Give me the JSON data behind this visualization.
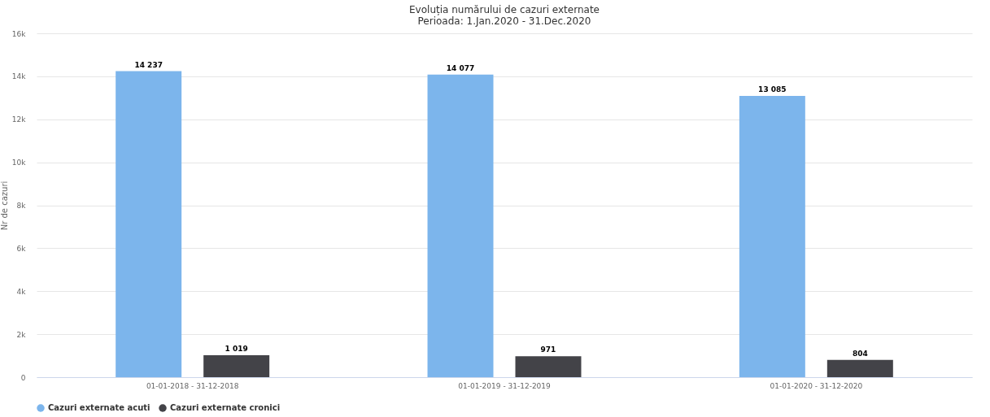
{
  "chart_data": {
    "type": "bar",
    "title": [
      "Evoluția numărului de cazuri externate",
      "Perioada: 1.Jan.2020 - 31.Dec.2020"
    ],
    "ylabel": "Nr de cazuri",
    "categories": [
      "01-01-2018 - 31-12-2018",
      "01-01-2019 - 31-12-2019",
      "01-01-2020 - 31-12-2020"
    ],
    "series": [
      {
        "name": "Cazuri externate acuti",
        "color": "#7cb5ec",
        "values": [
          14237,
          14077,
          13085
        ],
        "value_labels": [
          "14 237",
          "14 077",
          "13 085"
        ]
      },
      {
        "name": "Cazuri externate cronici",
        "color": "#434348",
        "values": [
          1019,
          971,
          804
        ],
        "value_labels": [
          "1 019",
          "971",
          "804"
        ]
      }
    ],
    "ylim": [
      0,
      16000
    ],
    "yticks": [
      0,
      {
        "value": 2000,
        "label": "2k"
      },
      {
        "value": 4000,
        "label": "4k"
      },
      {
        "value": 6000,
        "label": "6k"
      },
      {
        "value": 8000,
        "label": "8k"
      },
      {
        "value": 10000,
        "label": "10k"
      },
      {
        "value": 12000,
        "label": "12k"
      },
      {
        "value": 14000,
        "label": "14k"
      },
      {
        "value": 16000,
        "label": "16k"
      }
    ],
    "grid": "y",
    "legend": "bottom"
  }
}
